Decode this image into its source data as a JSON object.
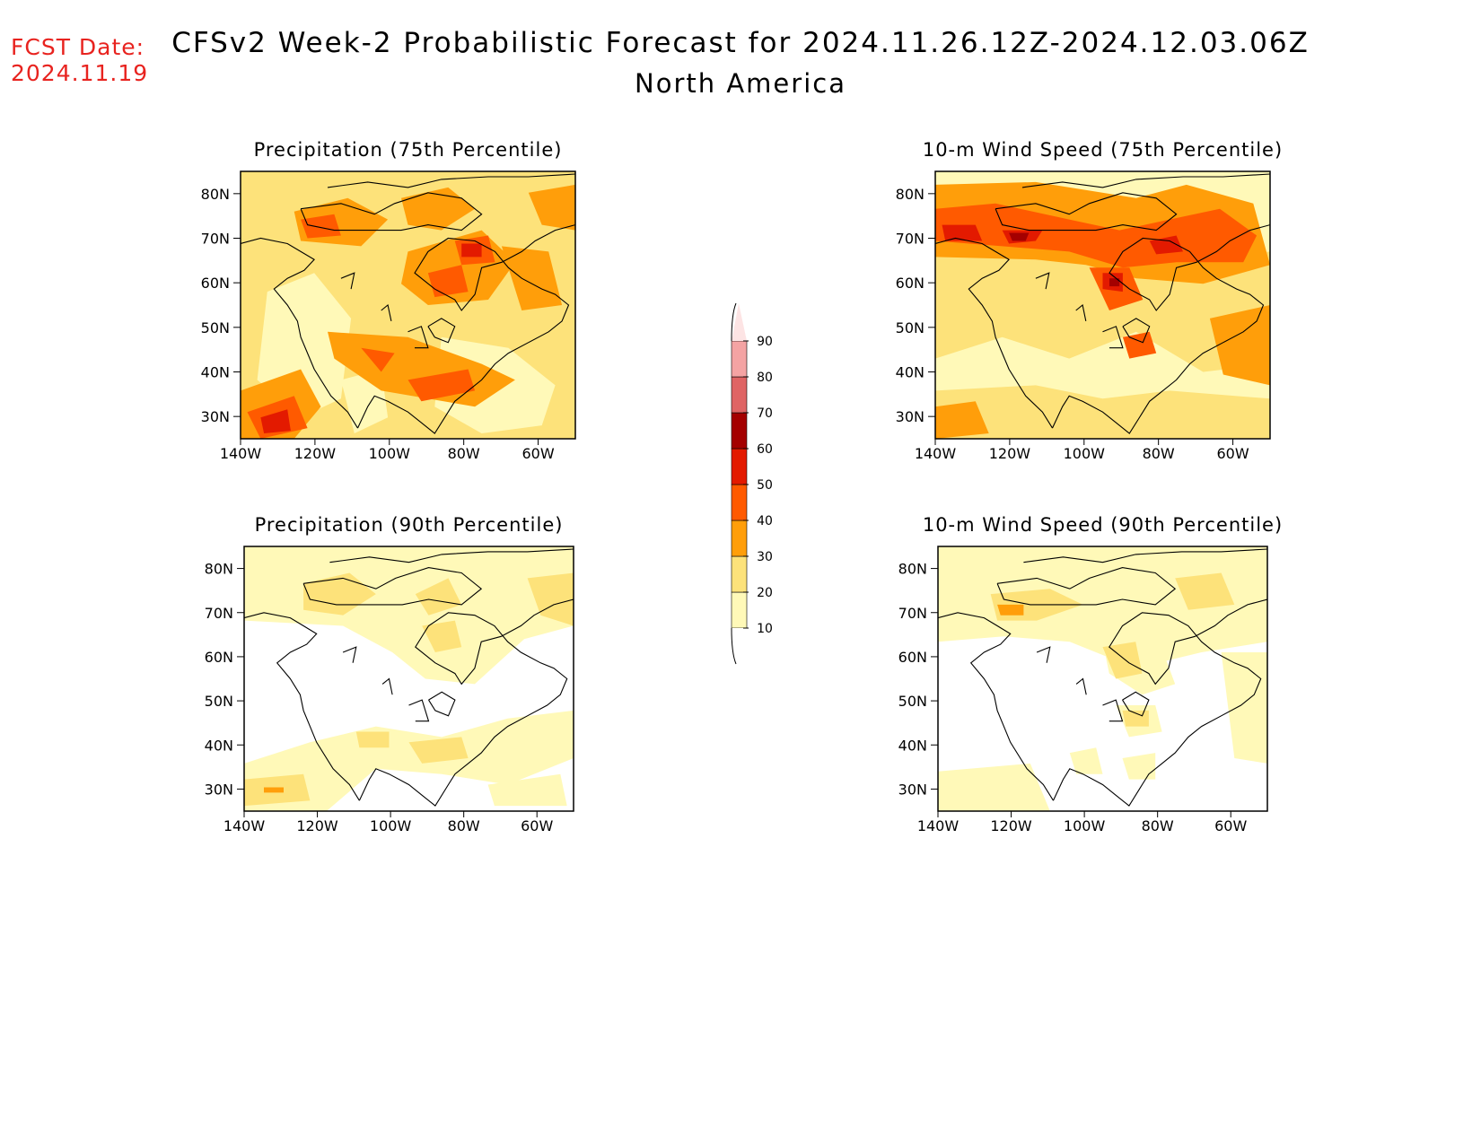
{
  "header": {
    "fcst_label": "FCST Date:",
    "fcst_date": "2024.11.19",
    "title": "CFSv2 Week-2 Probabilistic Forecast for 2024.11.26.12Z-2024.12.03.06Z",
    "subtitle": "North America"
  },
  "colors": {
    "header_date": "#e8231f",
    "levels": [
      "#fff9b8",
      "#fde27a",
      "#ff9e0a",
      "#ff5a00",
      "#e31a00",
      "#a40000",
      "#df6464",
      "#f4a3a3",
      "#fde4e4"
    ]
  },
  "colorbar": {
    "labels": [
      "10",
      "20",
      "30",
      "40",
      "50",
      "60",
      "70",
      "80",
      "90"
    ]
  },
  "axes": {
    "lat_labels": [
      "80N",
      "70N",
      "60N",
      "50N",
      "40N",
      "30N"
    ],
    "lon_labels": [
      "140W",
      "120W",
      "100W",
      "80W",
      "60W"
    ]
  },
  "panels": [
    {
      "id": "precip75",
      "title": "Precipitation (75th Percentile)",
      "variable": "Precipitation",
      "percentile": "75th"
    },
    {
      "id": "wind75",
      "title": "10-m Wind Speed (75th Percentile)",
      "variable": "10-m Wind Speed",
      "percentile": "75th"
    },
    {
      "id": "precip90",
      "title": "Precipitation (90th Percentile)",
      "variable": "Precipitation",
      "percentile": "90th"
    },
    {
      "id": "wind90",
      "title": "10-m Wind Speed (90th Percentile)",
      "variable": "10-m Wind Speed",
      "percentile": "90th"
    }
  ]
}
